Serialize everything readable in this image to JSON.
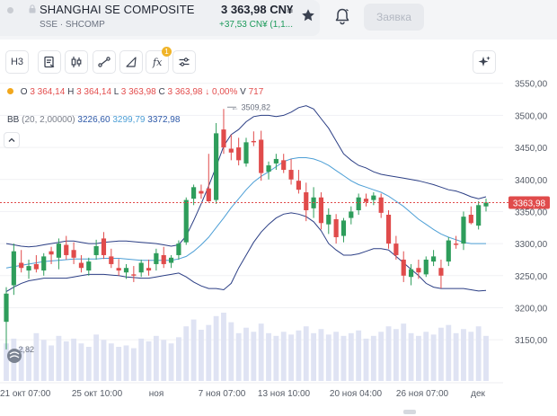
{
  "header": {
    "ticker_name": "SHANGHAI SE COMPOSITE",
    "ticker_price": "3 363,98 CN¥",
    "ticker_exchange": "SSE · SHCOMP",
    "ticker_change": "+37,53 CN¥ (1,1...",
    "order_button": "Заявка"
  },
  "toolbar": {
    "timeframe": "Н3",
    "indicators_badge": "1"
  },
  "legend": {
    "ohlc_prefix": "O",
    "open": "3 364,14",
    "high_prefix": "H",
    "high": "3 364,14",
    "low_prefix": "L",
    "low": "3 363,98",
    "close_prefix": "C",
    "close": "3 363,98",
    "change": "↓ 0,00%",
    "volume_prefix": "V",
    "volume": "717",
    "bb_name": "BB",
    "bb_params": "(20, 2,00000)",
    "bb_lower": "3226,60",
    "bb_mid": "3299,79",
    "bb_upper": "3372,98"
  },
  "colors": {
    "up": "#2e9d5b",
    "down": "#e04b4b",
    "bb_band": "#2c3f85",
    "bb_mid": "#4d9fd6",
    "volume": "#dfe3f3",
    "price_tag": "#e04b4b"
  },
  "chart_data": {
    "type": "candlestick",
    "y_ticks": [
      "3550,00",
      "3500,00",
      "3450,00",
      "3400,00",
      "3350,00",
      "3300,00",
      "3250,00",
      "3200,00",
      "3150,00"
    ],
    "ylim": [
      3132,
      3558
    ],
    "x_ticks": [
      "21 окт 07:00",
      "25 окт 10:00",
      "ноя",
      "7 ноя 07:00",
      "13 ноя 10:00",
      "20 ноя 04:00",
      "26 ноя 07:00",
      "дек"
    ],
    "current_price_label": "3363,98",
    "high_annotation": "3509,82",
    "low_annotation": "2,82",
    "candles": [
      {
        "o": 3178,
        "h": 3232,
        "l": 3135,
        "c": 3222
      },
      {
        "o": 3235,
        "h": 3300,
        "l": 3220,
        "c": 3288
      },
      {
        "o": 3270,
        "h": 3290,
        "l": 3255,
        "c": 3262
      },
      {
        "o": 3258,
        "h": 3275,
        "l": 3245,
        "c": 3265
      },
      {
        "o": 3268,
        "h": 3282,
        "l": 3255,
        "c": 3260
      },
      {
        "o": 3258,
        "h": 3285,
        "l": 3250,
        "c": 3280
      },
      {
        "o": 3288,
        "h": 3295,
        "l": 3268,
        "c": 3283
      },
      {
        "o": 3278,
        "h": 3308,
        "l": 3260,
        "c": 3300
      },
      {
        "o": 3298,
        "h": 3312,
        "l": 3275,
        "c": 3282
      },
      {
        "o": 3290,
        "h": 3302,
        "l": 3268,
        "c": 3278
      },
      {
        "o": 3270,
        "h": 3282,
        "l": 3255,
        "c": 3262
      },
      {
        "o": 3258,
        "h": 3278,
        "l": 3250,
        "c": 3272
      },
      {
        "o": 3282,
        "h": 3306,
        "l": 3275,
        "c": 3296
      },
      {
        "o": 3308,
        "h": 3318,
        "l": 3276,
        "c": 3282
      },
      {
        "o": 3280,
        "h": 3292,
        "l": 3262,
        "c": 3268
      },
      {
        "o": 3262,
        "h": 3276,
        "l": 3250,
        "c": 3258
      },
      {
        "o": 3255,
        "h": 3268,
        "l": 3245,
        "c": 3262
      },
      {
        "o": 3252,
        "h": 3265,
        "l": 3240,
        "c": 3250
      },
      {
        "o": 3255,
        "h": 3275,
        "l": 3248,
        "c": 3270
      },
      {
        "o": 3262,
        "h": 3275,
        "l": 3250,
        "c": 3258
      },
      {
        "o": 3268,
        "h": 3292,
        "l": 3258,
        "c": 3285
      },
      {
        "o": 3282,
        "h": 3295,
        "l": 3262,
        "c": 3268
      },
      {
        "o": 3270,
        "h": 3282,
        "l": 3262,
        "c": 3278
      },
      {
        "o": 3282,
        "h": 3305,
        "l": 3275,
        "c": 3300
      },
      {
        "o": 3302,
        "h": 3372,
        "l": 3298,
        "c": 3368
      },
      {
        "o": 3370,
        "h": 3392,
        "l": 3360,
        "c": 3388
      },
      {
        "o": 3382,
        "h": 3392,
        "l": 3370,
        "c": 3378
      },
      {
        "o": 3386,
        "h": 3440,
        "l": 3365,
        "c": 3366
      },
      {
        "o": 3368,
        "h": 3488,
        "l": 3362,
        "c": 3472
      },
      {
        "o": 3478,
        "h": 3510,
        "l": 3440,
        "c": 3450
      },
      {
        "o": 3448,
        "h": 3470,
        "l": 3430,
        "c": 3442
      },
      {
        "o": 3450,
        "h": 3465,
        "l": 3422,
        "c": 3430
      },
      {
        "o": 3425,
        "h": 3465,
        "l": 3420,
        "c": 3458
      },
      {
        "o": 3460,
        "h": 3475,
        "l": 3452,
        "c": 3458
      },
      {
        "o": 3462,
        "h": 3476,
        "l": 3398,
        "c": 3410
      },
      {
        "o": 3412,
        "h": 3428,
        "l": 3400,
        "c": 3422
      },
      {
        "o": 3425,
        "h": 3440,
        "l": 3415,
        "c": 3432
      },
      {
        "o": 3430,
        "h": 3440,
        "l": 3410,
        "c": 3415
      },
      {
        "o": 3415,
        "h": 3432,
        "l": 3392,
        "c": 3400
      },
      {
        "o": 3398,
        "h": 3415,
        "l": 3378,
        "c": 3384
      },
      {
        "o": 3380,
        "h": 3395,
        "l": 3335,
        "c": 3352
      },
      {
        "o": 3355,
        "h": 3388,
        "l": 3340,
        "c": 3372
      },
      {
        "o": 3372,
        "h": 3380,
        "l": 3322,
        "c": 3332
      },
      {
        "o": 3330,
        "h": 3355,
        "l": 3315,
        "c": 3345
      },
      {
        "o": 3338,
        "h": 3346,
        "l": 3300,
        "c": 3310
      },
      {
        "o": 3312,
        "h": 3340,
        "l": 3302,
        "c": 3336
      },
      {
        "o": 3340,
        "h": 3358,
        "l": 3330,
        "c": 3350
      },
      {
        "o": 3352,
        "h": 3378,
        "l": 3345,
        "c": 3372
      },
      {
        "o": 3370,
        "h": 3378,
        "l": 3358,
        "c": 3365
      },
      {
        "o": 3368,
        "h": 3380,
        "l": 3360,
        "c": 3375
      },
      {
        "o": 3372,
        "h": 3378,
        "l": 3340,
        "c": 3348
      },
      {
        "o": 3345,
        "h": 3352,
        "l": 3292,
        "c": 3300
      },
      {
        "o": 3300,
        "h": 3312,
        "l": 3275,
        "c": 3282
      },
      {
        "o": 3275,
        "h": 3288,
        "l": 3240,
        "c": 3250
      },
      {
        "o": 3248,
        "h": 3268,
        "l": 3235,
        "c": 3260
      },
      {
        "o": 3262,
        "h": 3275,
        "l": 3245,
        "c": 3255
      },
      {
        "o": 3252,
        "h": 3280,
        "l": 3248,
        "c": 3275
      },
      {
        "o": 3272,
        "h": 3290,
        "l": 3265,
        "c": 3280
      },
      {
        "o": 3262,
        "h": 3275,
        "l": 3230,
        "c": 3250
      },
      {
        "o": 3272,
        "h": 3310,
        "l": 3265,
        "c": 3305
      },
      {
        "o": 3300,
        "h": 3312,
        "l": 3292,
        "c": 3298
      },
      {
        "o": 3300,
        "h": 3350,
        "l": 3290,
        "c": 3342
      },
      {
        "o": 3345,
        "h": 3358,
        "l": 3330,
        "c": 3332
      },
      {
        "o": 3328,
        "h": 3366,
        "l": 3322,
        "c": 3360
      },
      {
        "o": 3358,
        "h": 3370,
        "l": 3350,
        "c": 3364
      }
    ],
    "volumes": [
      0.55,
      0.62,
      0.5,
      0.48,
      0.7,
      0.6,
      0.52,
      0.66,
      0.58,
      0.62,
      0.55,
      0.5,
      0.68,
      0.6,
      0.55,
      0.5,
      0.52,
      0.48,
      0.62,
      0.58,
      0.66,
      0.6,
      0.55,
      0.64,
      0.8,
      0.9,
      0.75,
      0.82,
      0.95,
      1.0,
      0.86,
      0.7,
      0.78,
      0.72,
      0.84,
      0.7,
      0.66,
      0.72,
      0.68,
      0.74,
      0.8,
      0.7,
      0.76,
      0.68,
      0.72,
      0.66,
      0.7,
      0.74,
      0.62,
      0.66,
      0.72,
      0.8,
      0.76,
      0.84,
      0.7,
      0.66,
      0.72,
      0.68,
      0.78,
      0.82,
      0.7,
      0.76,
      0.72,
      0.8,
      0.66
    ],
    "bb_upper": [
      3300,
      3298,
      3296,
      3295,
      3296,
      3298,
      3300,
      3302,
      3304,
      3304,
      3302,
      3300,
      3300,
      3302,
      3303,
      3304,
      3304,
      3303,
      3302,
      3301,
      3300,
      3298,
      3296,
      3298,
      3312,
      3336,
      3362,
      3390,
      3420,
      3452,
      3470,
      3478,
      3490,
      3498,
      3500,
      3500,
      3498,
      3500,
      3505,
      3512,
      3515,
      3510,
      3495,
      3480,
      3460,
      3440,
      3430,
      3422,
      3418,
      3412,
      3408,
      3406,
      3404,
      3402,
      3400,
      3398,
      3395,
      3392,
      3388,
      3384,
      3382,
      3378,
      3373,
      3370,
      3373
    ],
    "bb_mid": [
      3262,
      3264,
      3266,
      3268,
      3270,
      3272,
      3273,
      3274,
      3275,
      3276,
      3276,
      3276,
      3276,
      3277,
      3277,
      3277,
      3276,
      3275,
      3274,
      3274,
      3274,
      3274,
      3274,
      3276,
      3280,
      3288,
      3298,
      3310,
      3325,
      3340,
      3356,
      3370,
      3384,
      3396,
      3405,
      3412,
      3420,
      3428,
      3432,
      3434,
      3434,
      3432,
      3428,
      3422,
      3414,
      3406,
      3398,
      3392,
      3388,
      3384,
      3380,
      3374,
      3366,
      3358,
      3348,
      3338,
      3330,
      3322,
      3315,
      3310,
      3306,
      3302,
      3300,
      3300,
      3300
    ],
    "bb_lower": [
      3225,
      3232,
      3238,
      3242,
      3244,
      3246,
      3246,
      3246,
      3246,
      3248,
      3250,
      3252,
      3252,
      3252,
      3251,
      3250,
      3248,
      3247,
      3246,
      3246,
      3248,
      3250,
      3252,
      3254,
      3248,
      3240,
      3234,
      3230,
      3230,
      3228,
      3238,
      3262,
      3282,
      3302,
      3318,
      3330,
      3340,
      3346,
      3348,
      3346,
      3342,
      3334,
      3320,
      3300,
      3290,
      3282,
      3282,
      3284,
      3288,
      3292,
      3292,
      3290,
      3280,
      3270,
      3260,
      3250,
      3238,
      3232,
      3230,
      3230,
      3230,
      3230,
      3228,
      3226,
      3227
    ]
  }
}
